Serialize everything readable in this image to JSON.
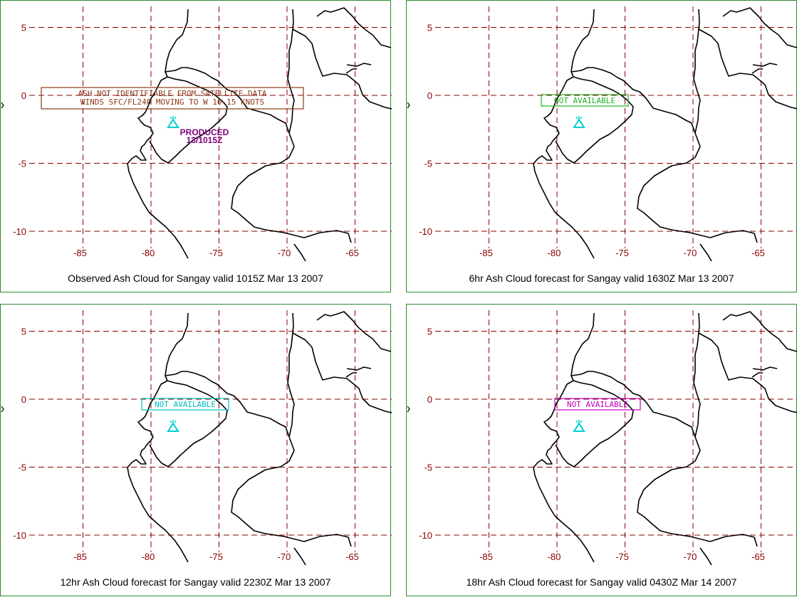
{
  "colors": {
    "grid": "#8b0000",
    "frame": "#2e8b2e",
    "volcano": "#00d0d0",
    "coastline": "#000000"
  },
  "map": {
    "y_ticks": [
      "5",
      "0",
      "-5",
      "-10"
    ],
    "x_ticks": [
      "-85",
      "-80",
      "-75",
      "-70",
      "-65"
    ],
    "volcano_icon": "volcano-icon"
  },
  "panels": [
    {
      "caption": "Observed Ash Cloud for Sangay valid 1015Z Mar 13 2007",
      "advisory_lines": [
        "ASH NOT IDENTIFIABLE FROM SATELLITE DATA",
        "WINDS SFC/FL240 MOVING TO W 10-15 KNOTS"
      ],
      "box_color": "#8b3a1a",
      "produced_lines": [
        "PRODUCED",
        "13/1015Z"
      ],
      "produced_color": "#800080"
    },
    {
      "caption": "6hr Ash Cloud forecast for Sangay valid 1630Z Mar 13 2007",
      "advisory_lines": [
        "NOT AVAILABLE"
      ],
      "box_color": "#22b022"
    },
    {
      "caption": "12hr Ash Cloud forecast for Sangay valid 2230Z Mar 13 2007",
      "advisory_lines": [
        "NOT AVAILABLE"
      ],
      "box_color": "#00c0c0"
    },
    {
      "caption": "18hr Ash Cloud forecast for Sangay valid 0430Z Mar 14 2007",
      "advisory_lines": [
        "NOT AVAILABLE"
      ],
      "box_color": "#c000c0"
    }
  ]
}
